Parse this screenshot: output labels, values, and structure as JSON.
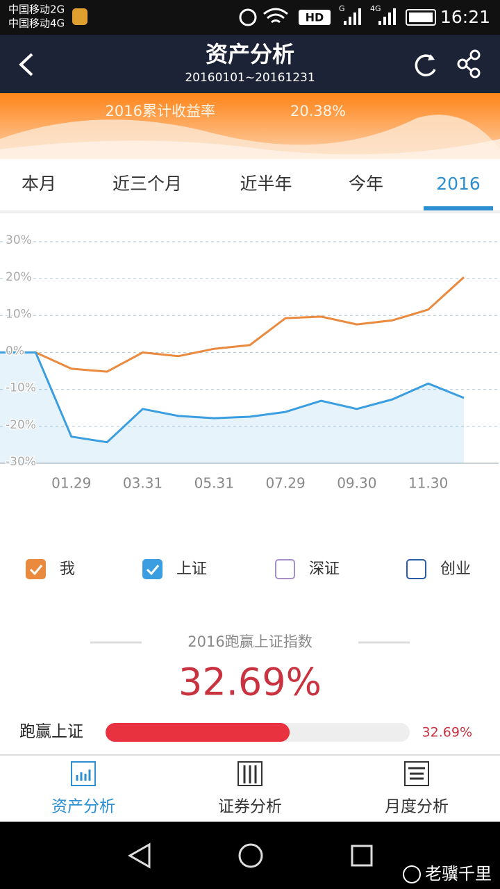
{
  "status_bar": {
    "carrier_1": "中国移动2G",
    "carrier_2": "中国移动4G",
    "hd": "HD",
    "network_1": "G",
    "network_2": "4G",
    "time": "16:21"
  },
  "header": {
    "title": "资产分析",
    "subtitle": "20160101~20161231"
  },
  "banner": {
    "label": "2016累计收益率",
    "value": "20.38%"
  },
  "tabs": {
    "items": [
      "本月",
      "近三个月",
      "近半年",
      "今年",
      "2016"
    ],
    "active": 4
  },
  "chart_data": {
    "type": "line",
    "categories": [
      null,
      null,
      "01.29",
      null,
      "03.31",
      null,
      "05.31",
      null,
      "07.29",
      null,
      "09.30",
      null,
      "11.30",
      null
    ],
    "series": [
      {
        "name": "我",
        "color": "#ea8a3f",
        "values": [
          0,
          0,
          -4.4,
          -5.2,
          0,
          -1,
          1,
          2,
          9.3,
          9.7,
          7.6,
          8.7,
          11.6,
          20.38
        ]
      },
      {
        "name": "上证",
        "color": "#3a9ee0",
        "area": true,
        "values": [
          0,
          0,
          -22.8,
          -24.3,
          -15.3,
          -17.2,
          -17.8,
          -17.4,
          -16.1,
          -13.1,
          -15.3,
          -12.7,
          -8.4,
          -12.31
        ]
      }
    ],
    "ylim": [
      -30,
      30
    ],
    "yticks": [
      {
        "value": 30,
        "label": "30%"
      },
      {
        "value": 20,
        "label": "20%"
      },
      {
        "value": 10,
        "label": "10%"
      },
      {
        "value": 0,
        "label": "0%"
      },
      {
        "value": -10,
        "label": "-10%"
      },
      {
        "value": -20,
        "label": "-20%"
      },
      {
        "value": -30,
        "label": "-30%"
      }
    ],
    "grid": true
  },
  "legend": [
    {
      "label": "深证",
      "checked": false,
      "color": "#a98fc8"
    },
    {
      "label": "创业",
      "checked": false,
      "color": "#2a5ca8"
    }
  ],
  "comparison": {
    "title": "2016跑赢上证指数",
    "value": 32.69,
    "value_label": "32.69%",
    "bar_label": "跑赢上证",
    "xlim": [
      0,
      54
    ]
  },
  "bottom_nav": {
    "items": [
      "资产分析",
      "证券分析",
      "月度分析"
    ],
    "active": 0
  },
  "watermark": "老骥千里"
}
